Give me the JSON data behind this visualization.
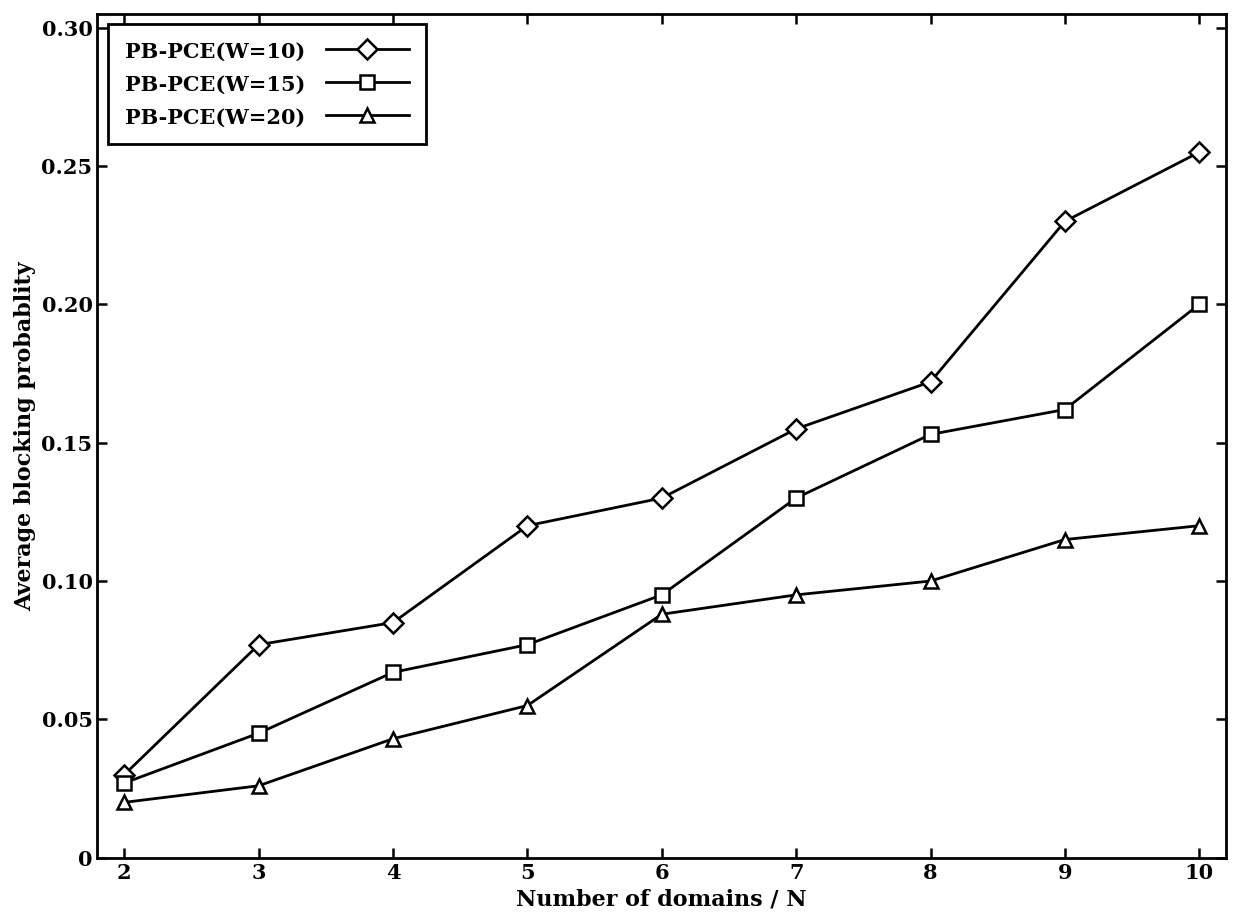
{
  "title": "",
  "xlabel": "Number of domains / N",
  "ylabel": "Average blocking probablity",
  "x": [
    2,
    3,
    4,
    5,
    6,
    7,
    8,
    9,
    10
  ],
  "series": [
    {
      "label": "PB-PCE(W=10)",
      "marker": "D",
      "values": [
        0.03,
        0.077,
        0.085,
        0.12,
        0.13,
        0.155,
        0.172,
        0.23,
        0.255
      ]
    },
    {
      "label": "PB-PCE(W=15)",
      "marker": "s",
      "values": [
        0.027,
        0.045,
        0.067,
        0.077,
        0.095,
        0.13,
        0.153,
        0.162,
        0.2
      ]
    },
    {
      "label": "PB-PCE(W=20)",
      "marker": "^",
      "values": [
        0.02,
        0.026,
        0.043,
        0.055,
        0.088,
        0.095,
        0.1,
        0.115,
        0.12
      ]
    }
  ],
  "xlim": [
    1.8,
    10.2
  ],
  "ylim": [
    0,
    0.305
  ],
  "ytick_values": [
    0,
    0.05,
    0.1,
    0.15,
    0.2,
    0.25,
    0.3
  ],
  "ytick_labels": [
    "0",
    "0.05",
    "0.10",
    "0.15",
    "0.20",
    "0.25",
    "0.30"
  ],
  "xticks": [
    2,
    3,
    4,
    5,
    6,
    7,
    8,
    9,
    10
  ],
  "line_color": "#000000",
  "background_color": "#ffffff",
  "legend_loc": "upper left",
  "label_fontsize": 16,
  "tick_fontsize": 15,
  "legend_fontsize": 15,
  "linewidth": 2.0,
  "markersize": 10
}
